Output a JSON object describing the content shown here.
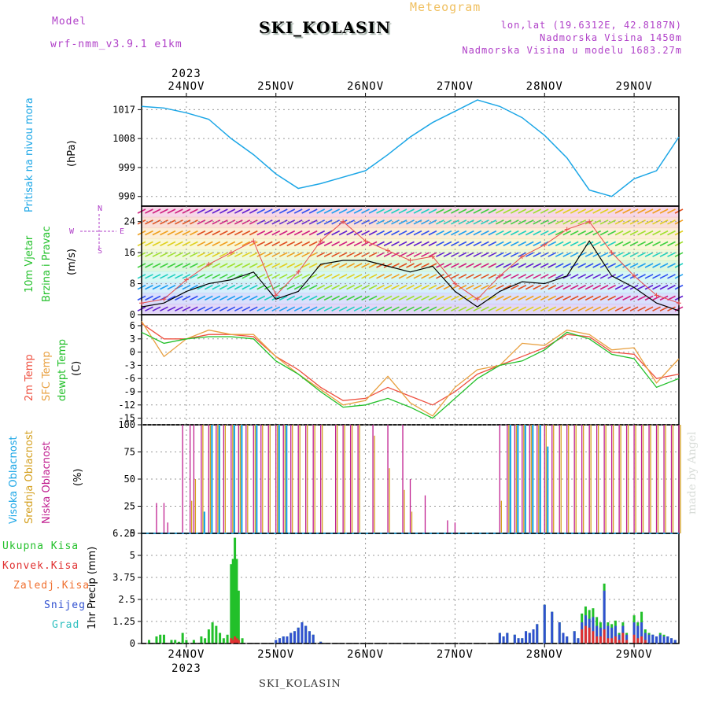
{
  "header": {
    "model_label": "Model",
    "model_value": "wrf-nmm_v3.9.1 e1km",
    "title": "SKI_KOLASIN",
    "meteogram_label": "Meteogram",
    "lonlat": "lon,lat (19.6312E, 42.8187N)",
    "altitude": "Nadmorska Visina 1450m",
    "model_altitude": "Nadmorska Visina u modelu 1683.27m"
  },
  "footer": {
    "station": "SKI_KOLASIN",
    "credit": "made by Angel"
  },
  "axis": {
    "year": "2023",
    "days": [
      "24NOV",
      "25NOV",
      "26NOV",
      "27NOV",
      "28NOV",
      "29NOV"
    ]
  },
  "colors": {
    "pressure": "#1ba6e6",
    "wind_speed": "#000000",
    "gust": "#e74c4c",
    "temp2m": "#ee5040",
    "sfc_temp": "#e8a040",
    "dewpt": "#22c02a",
    "high_cloud": "#1ba6e6",
    "mid_cloud": "#d4a020",
    "low_cloud": "#c02090",
    "total_precip": "#22c02a",
    "convective": "#e03030",
    "freezing": "#f07030",
    "snow": "#3050d0",
    "hail": "#30c0c0"
  },
  "panel_labels": {
    "pressure": [
      "Pritisak na nivou mora",
      "(hPa)"
    ],
    "wind": [
      "10m Vjetar",
      "Brzina i Pravac",
      "(m/s)"
    ],
    "wind_rose": {
      "n": "N",
      "s": "S",
      "e": "E",
      "w": "W"
    },
    "temp": [
      "2m Temp",
      "SFC Temp",
      "dewpt Temp",
      "(C)"
    ],
    "cloud": [
      "Visoka Oblacnost",
      "Srednja Oblacnost",
      "Niska Oblacnost",
      "(%)"
    ],
    "precip_legend": [
      "Ukupna Kisa",
      "Konvek.Kisa",
      "Zaledj.Kisa",
      "Snijeg",
      "Grad"
    ],
    "precip_axis": "1hr Precip (mm)"
  },
  "chart_data": [
    {
      "type": "line",
      "name": "pressure",
      "ylabel": "Pritisak na nivou mora (hPa)",
      "ylim": [
        987,
        1021
      ],
      "yticks": [
        990,
        999,
        1008,
        1017
      ],
      "x_hours": [
        0,
        6,
        12,
        18,
        24,
        30,
        36,
        42,
        48,
        54,
        60,
        66,
        72,
        78,
        84,
        90,
        96,
        102,
        108,
        114,
        120,
        126,
        132,
        138,
        144
      ],
      "values": [
        1018,
        1017.5,
        1016,
        1014,
        1008,
        1003,
        997,
        992.5,
        994,
        996,
        998,
        1003,
        1008.5,
        1013,
        1016.5,
        1020,
        1018,
        1014.5,
        1009,
        1002,
        992,
        990,
        995.5,
        998,
        1008.5
      ]
    },
    {
      "type": "line",
      "name": "wind",
      "ylabel": "10m Vjetar Brzina i Pravac (m/s)",
      "ylim": [
        0,
        28
      ],
      "yticks": [
        0,
        8,
        16,
        24
      ],
      "x_hours": [
        0,
        6,
        12,
        18,
        24,
        30,
        36,
        42,
        48,
        54,
        60,
        66,
        72,
        78,
        84,
        90,
        96,
        102,
        108,
        114,
        120,
        126,
        132,
        138,
        144
      ],
      "speed": [
        2,
        3,
        6,
        8,
        9,
        11,
        4,
        6,
        13,
        14,
        14,
        12.5,
        11,
        12.5,
        6,
        2,
        6,
        8.5,
        8,
        10,
        19,
        10,
        7,
        3,
        1
      ],
      "gust": [
        3,
        4,
        9,
        13,
        16,
        19,
        5,
        11,
        19,
        24,
        19,
        16.5,
        14,
        15,
        8,
        4,
        10,
        15,
        18,
        22,
        24,
        16,
        10,
        5,
        3
      ]
    },
    {
      "type": "line",
      "name": "temperature",
      "ylabel": "(C)",
      "ylim": [
        -16.5,
        8.5
      ],
      "yticks": [
        -15,
        -12,
        -9,
        -6,
        -3,
        0,
        3,
        6
      ],
      "x_hours": [
        0,
        6,
        12,
        18,
        24,
        30,
        36,
        42,
        48,
        54,
        60,
        66,
        72,
        78,
        84,
        90,
        96,
        102,
        108,
        114,
        120,
        126,
        132,
        138,
        144
      ],
      "series": [
        {
          "name": "2m Temp",
          "values": [
            6.5,
            3,
            3,
            4,
            4,
            3.5,
            -1,
            -4,
            -8,
            -11,
            -10.5,
            -8,
            -10,
            -12,
            -9,
            -5,
            -3,
            -1,
            1,
            4,
            3.5,
            0,
            -0.5,
            -6,
            -5
          ]
        },
        {
          "name": "SFC Temp",
          "values": [
            7,
            -1,
            3,
            5,
            4,
            4,
            -1,
            -5,
            -8.5,
            -12,
            -11,
            -5.5,
            -11.5,
            -14.5,
            -8,
            -4,
            -3,
            2,
            1.5,
            5,
            4,
            0.5,
            1,
            -7,
            -1.5
          ]
        },
        {
          "name": "dewpt Temp",
          "values": [
            4.5,
            2,
            3,
            3.5,
            3.5,
            3,
            -2,
            -5,
            -9,
            -12.5,
            -12,
            -10.5,
            -12.5,
            -15,
            -10.5,
            -6,
            -3,
            -2,
            0.5,
            4.5,
            3,
            -0.5,
            -1.5,
            -8,
            -6
          ]
        }
      ]
    },
    {
      "type": "bar",
      "name": "cloud_cover",
      "ylabel": "(%)",
      "ylim": [
        0,
        100
      ],
      "yticks": [
        0,
        25,
        50,
        75,
        100
      ],
      "x_hours": [
        4,
        6,
        7,
        11,
        13,
        14,
        16,
        18,
        20,
        22,
        24,
        26,
        28,
        30,
        32,
        34,
        36,
        38,
        40,
        42,
        44,
        46,
        48,
        52,
        54,
        56,
        58,
        62,
        66,
        70,
        72,
        76,
        82,
        84,
        96,
        98,
        100,
        102,
        104,
        106,
        108,
        110,
        112,
        114,
        116,
        118,
        120,
        122,
        124,
        126,
        128,
        130,
        132,
        134,
        136,
        138,
        140,
        142,
        144
      ],
      "series": [
        {
          "name": "Niska Oblacnost",
          "values": [
            28,
            28,
            10,
            100,
            100,
            100,
            100,
            100,
            100,
            100,
            100,
            100,
            100,
            100,
            100,
            100,
            100,
            100,
            100,
            100,
            100,
            100,
            100,
            100,
            100,
            100,
            100,
            100,
            100,
            100,
            50,
            35,
            12,
            10,
            100,
            100,
            100,
            100,
            100,
            100,
            100,
            100,
            100,
            100,
            100,
            100,
            100,
            100,
            100,
            100,
            100,
            100,
            100,
            100,
            100,
            100,
            100,
            100,
            100
          ]
        },
        {
          "name": "Srednja Oblacnost",
          "values": [
            0,
            0,
            0,
            0,
            30,
            50,
            100,
            100,
            100,
            100,
            100,
            100,
            100,
            100,
            100,
            100,
            100,
            100,
            100,
            100,
            100,
            100,
            100,
            100,
            100,
            100,
            100,
            90,
            60,
            40,
            20,
            0,
            0,
            0,
            30,
            100,
            100,
            100,
            100,
            100,
            100,
            100,
            100,
            100,
            100,
            100,
            100,
            100,
            100,
            100,
            100,
            100,
            100,
            100,
            100,
            100,
            100,
            100,
            100
          ]
        },
        {
          "name": "Visoka Oblacnost",
          "values": [
            0,
            0,
            0,
            0,
            0,
            0,
            20,
            100,
            100,
            0,
            100,
            100,
            0,
            100,
            0,
            0,
            100,
            100,
            0,
            0,
            0,
            0,
            0,
            0,
            0,
            0,
            0,
            0,
            0,
            0,
            0,
            0,
            0,
            0,
            0,
            100,
            100,
            100,
            100,
            100,
            80,
            0,
            0,
            0,
            0,
            0,
            0,
            0,
            0,
            0,
            0,
            0,
            0,
            0,
            0,
            0,
            0,
            0,
            0
          ]
        }
      ]
    },
    {
      "type": "bar",
      "name": "precipitation",
      "ylabel": "1hr Precip (mm)",
      "ylim": [
        0,
        6.25
      ],
      "yticks": [
        0,
        1.25,
        2.5,
        3.75,
        5,
        6.25
      ],
      "x_hours": [
        2,
        4,
        5,
        6,
        8,
        9,
        10,
        11,
        12,
        14,
        16,
        17,
        18,
        19,
        20,
        21,
        22,
        23,
        24,
        24.5,
        25,
        25.5,
        26,
        27,
        36,
        37,
        38,
        39,
        40,
        41,
        42,
        43,
        44,
        45,
        46,
        48,
        96,
        97,
        98,
        100,
        101,
        102,
        103,
        104,
        105,
        106,
        108,
        110,
        112,
        113,
        114,
        116,
        117,
        118,
        119,
        120,
        121,
        122,
        123,
        124,
        125,
        126,
        127,
        128,
        129,
        130,
        132,
        133,
        134,
        135,
        136,
        137,
        138,
        139,
        140,
        141,
        142,
        143
      ],
      "series": [
        {
          "name": "Ukupna Kisa",
          "values": [
            0.2,
            0.4,
            0.5,
            0.5,
            0.2,
            0.2,
            0.1,
            0.6,
            0.2,
            0.2,
            0.4,
            0.3,
            0.8,
            1.2,
            1.0,
            0.6,
            0.3,
            0.5,
            4.5,
            4.8,
            6.0,
            4.8,
            3.0,
            0.3,
            0.2,
            0.3,
            0.4,
            0.4,
            0.6,
            0.7,
            0.9,
            1.2,
            1.0,
            0.7,
            0.5,
            0.1,
            0.6,
            0.4,
            0.6,
            0.5,
            0.3,
            0.3,
            0.7,
            0.6,
            0.8,
            1.1,
            2.2,
            1.8,
            1.2,
            0.6,
            0.4,
            0.7,
            0.3,
            1.7,
            2.1,
            1.9,
            2.0,
            1.5,
            1.2,
            3.4,
            1.2,
            1.1,
            1.3,
            0.6,
            1.2,
            0.6,
            1.6,
            1.2,
            1.8,
            0.8,
            0.6,
            0.5,
            0.4,
            0.6,
            0.5,
            0.4,
            0.3,
            0.2
          ]
        },
        {
          "name": "Snijeg",
          "values": [
            0,
            0,
            0,
            0,
            0,
            0,
            0,
            0,
            0,
            0,
            0,
            0,
            0,
            0,
            0,
            0,
            0,
            0,
            0,
            0,
            0,
            0,
            0,
            0,
            0.2,
            0.3,
            0.4,
            0.4,
            0.6,
            0.7,
            0.9,
            1.2,
            1.0,
            0.7,
            0.5,
            0.1,
            0.6,
            0.4,
            0.6,
            0.5,
            0.3,
            0.3,
            0.7,
            0.6,
            0.8,
            1.1,
            2.2,
            1.8,
            1.2,
            0.6,
            0.4,
            0.7,
            0.3,
            1.2,
            1.6,
            1.4,
            1.5,
            1.0,
            0.9,
            3.0,
            1.0,
            0.9,
            1.0,
            0.5,
            1.0,
            0.5,
            1.2,
            1.0,
            1.2,
            0.6,
            0.5,
            0.5,
            0.4,
            0.5,
            0.4,
            0.4,
            0.3,
            0.2
          ]
        },
        {
          "name": "Konvek.Kisa",
          "values": [
            0,
            0,
            0,
            0,
            0,
            0,
            0,
            0,
            0,
            0,
            0,
            0,
            0,
            0,
            0,
            0,
            0,
            0,
            0.3,
            0.2,
            0.4,
            0.3,
            0.2,
            0,
            0,
            0,
            0,
            0,
            0,
            0,
            0,
            0,
            0,
            0,
            0,
            0,
            0,
            0,
            0,
            0,
            0,
            0,
            0,
            0,
            0,
            0,
            0,
            0,
            0,
            0,
            0,
            0,
            0,
            0.8,
            1.0,
            0.9,
            0.7,
            0.4,
            0.4,
            0.8,
            0.3,
            0.3,
            0.4,
            0.2,
            0.6,
            0.2,
            0.5,
            0.3,
            0.4,
            0.2,
            0,
            0,
            0,
            0,
            0,
            0,
            0,
            0
          ]
        }
      ]
    }
  ]
}
